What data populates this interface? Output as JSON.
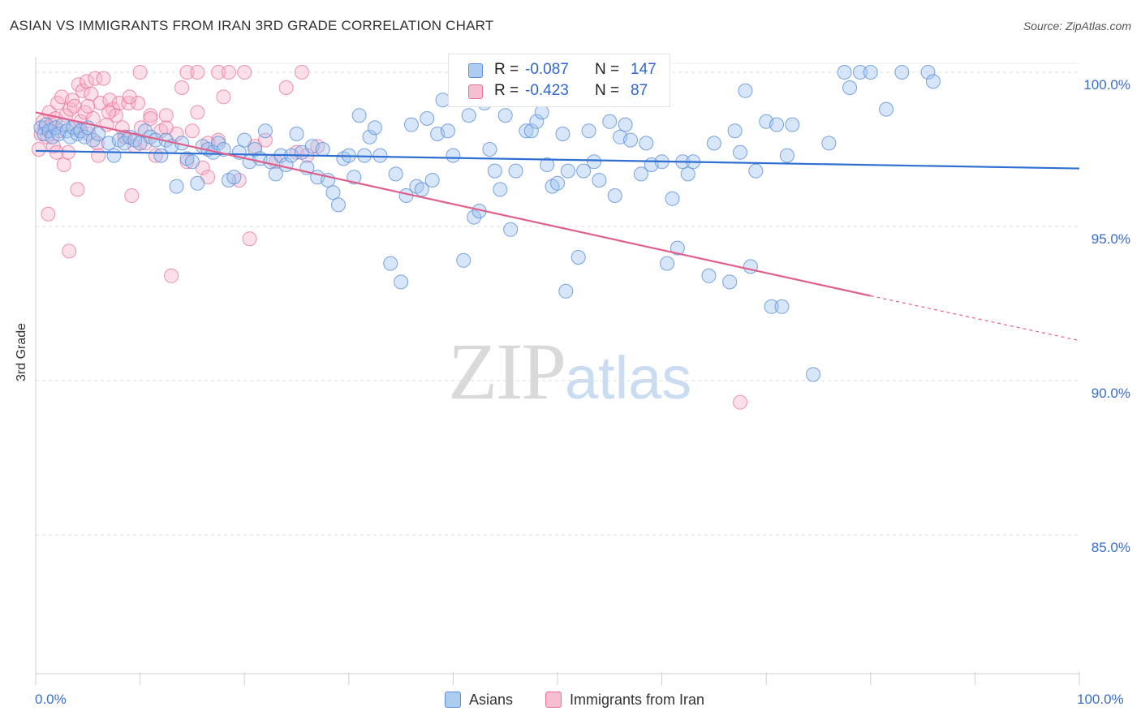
{
  "title": "ASIAN VS IMMIGRANTS FROM IRAN 3RD GRADE CORRELATION CHART",
  "source": "Source: ZipAtlas.com",
  "watermark": {
    "zip": "ZIP",
    "atlas": "atlas"
  },
  "legend": {
    "r_label": "R =",
    "n_label": "N =",
    "rows": [
      {
        "r": "-0.087",
        "n": "147",
        "fill": "#aecbf0",
        "stroke": "#5b8fd9"
      },
      {
        "r": "-0.423",
        "n": "87",
        "fill": "#f6bfd1",
        "stroke": "#e8709a"
      }
    ]
  },
  "bottom_legend": [
    "Asians",
    "Immigrants from Iran"
  ],
  "chart_data": {
    "type": "scatter",
    "title": "ASIAN VS IMMIGRANTS FROM IRAN 3RD GRADE CORRELATION CHART",
    "xlabel": "",
    "ylabel": "3rd Grade",
    "xlim": [
      0,
      100
    ],
    "ylim": [
      80.5,
      100.5
    ],
    "x_tick_labels": [
      "0.0%",
      "100.0%"
    ],
    "y_ticks": [
      {
        "value": 100,
        "label": "100.0%"
      },
      {
        "value": 95,
        "label": "95.0%"
      },
      {
        "value": 90,
        "label": "90.0%"
      },
      {
        "value": 85,
        "label": "85.0%"
      }
    ],
    "grid": "horizontal dashed",
    "legend_position": "top-center",
    "colors": {
      "asians": "#5b8fd9",
      "iran": "#e8709a",
      "asians_line": "#2f6fd1",
      "iran_line": "#e0608a"
    },
    "series": [
      {
        "name": "Asians",
        "r": -0.087,
        "n": 147,
        "trend": {
          "x0": 0,
          "y0": 97.45,
          "x1": 100,
          "y1": 96.88
        },
        "points": [
          [
            0.5,
            98.2
          ],
          [
            0.8,
            98.0
          ],
          [
            1.0,
            98.3
          ],
          [
            1.3,
            98.1
          ],
          [
            1.6,
            97.9
          ],
          [
            1.9,
            98.2
          ],
          [
            2.2,
            98.0
          ],
          [
            2.6,
            98.3
          ],
          [
            3.0,
            98.1
          ],
          [
            3.3,
            97.9
          ],
          [
            3.6,
            98.2
          ],
          [
            4.0,
            98.0
          ],
          [
            4.3,
            98.1
          ],
          [
            4.7,
            97.9
          ],
          [
            5.0,
            98.2
          ],
          [
            5.5,
            97.8
          ],
          [
            6.0,
            98.0
          ],
          [
            7.0,
            97.7
          ],
          [
            7.5,
            97.3
          ],
          [
            8.0,
            97.8
          ],
          [
            8.5,
            97.7
          ],
          [
            9.0,
            97.9
          ],
          [
            9.5,
            97.8
          ],
          [
            10.0,
            97.7
          ],
          [
            10.5,
            98.1
          ],
          [
            11.0,
            97.9
          ],
          [
            11.5,
            97.8
          ],
          [
            12.0,
            97.3
          ],
          [
            12.5,
            97.8
          ],
          [
            13.0,
            97.6
          ],
          [
            13.5,
            96.3
          ],
          [
            14.0,
            97.7
          ],
          [
            14.5,
            97.2
          ],
          [
            15.0,
            97.1
          ],
          [
            15.5,
            96.4
          ],
          [
            16.0,
            97.6
          ],
          [
            16.5,
            97.5
          ],
          [
            17.0,
            97.4
          ],
          [
            17.5,
            97.7
          ],
          [
            18.0,
            97.5
          ],
          [
            18.5,
            96.5
          ],
          [
            19.0,
            96.6
          ],
          [
            19.5,
            97.4
          ],
          [
            20.0,
            97.8
          ],
          [
            20.5,
            97.1
          ],
          [
            21.0,
            97.5
          ],
          [
            21.5,
            97.2
          ],
          [
            22.0,
            98.1
          ],
          [
            22.5,
            97.1
          ],
          [
            23.0,
            96.7
          ],
          [
            23.5,
            97.3
          ],
          [
            24.0,
            97.0
          ],
          [
            24.5,
            97.3
          ],
          [
            25.0,
            98.0
          ],
          [
            25.5,
            97.4
          ],
          [
            26.0,
            96.9
          ],
          [
            26.5,
            97.6
          ],
          [
            27.0,
            96.6
          ],
          [
            27.5,
            97.5
          ],
          [
            28.0,
            96.5
          ],
          [
            28.5,
            96.1
          ],
          [
            29.0,
            95.7
          ],
          [
            29.5,
            97.2
          ],
          [
            30.0,
            97.3
          ],
          [
            30.5,
            96.6
          ],
          [
            31.0,
            98.6
          ],
          [
            31.5,
            97.3
          ],
          [
            32.0,
            97.9
          ],
          [
            32.5,
            98.2
          ],
          [
            33.0,
            97.3
          ],
          [
            34.0,
            93.8
          ],
          [
            34.5,
            96.7
          ],
          [
            35.0,
            93.2
          ],
          [
            35.5,
            96.0
          ],
          [
            36.0,
            98.3
          ],
          [
            36.5,
            96.3
          ],
          [
            37.0,
            96.2
          ],
          [
            37.5,
            98.5
          ],
          [
            38.0,
            96.5
          ],
          [
            38.5,
            98.0
          ],
          [
            39.0,
            99.1
          ],
          [
            39.5,
            98.1
          ],
          [
            40.0,
            97.3
          ],
          [
            41.0,
            93.9
          ],
          [
            41.5,
            98.6
          ],
          [
            42.0,
            95.3
          ],
          [
            42.5,
            95.5
          ],
          [
            43.0,
            99.0
          ],
          [
            43.5,
            97.5
          ],
          [
            44.0,
            96.8
          ],
          [
            44.5,
            96.2
          ],
          [
            45.0,
            98.6
          ],
          [
            45.5,
            94.9
          ],
          [
            46.0,
            96.8
          ],
          [
            47.0,
            98.1
          ],
          [
            47.5,
            98.1
          ],
          [
            48.0,
            98.4
          ],
          [
            48.5,
            98.7
          ],
          [
            49.0,
            97.0
          ],
          [
            49.5,
            96.3
          ],
          [
            50.0,
            96.4
          ],
          [
            50.5,
            98.0
          ],
          [
            51.0,
            96.8
          ],
          [
            52.0,
            94.0
          ],
          [
            52.5,
            96.8
          ],
          [
            53.0,
            98.1
          ],
          [
            53.5,
            97.1
          ],
          [
            54.0,
            96.5
          ],
          [
            55.0,
            98.4
          ],
          [
            55.5,
            96.0
          ],
          [
            56.0,
            97.9
          ],
          [
            56.5,
            98.3
          ],
          [
            57.0,
            97.8
          ],
          [
            57.5,
            99.2
          ],
          [
            58.0,
            96.7
          ],
          [
            58.5,
            97.7
          ],
          [
            59.0,
            97.0
          ],
          [
            60.0,
            97.1
          ],
          [
            60.5,
            93.8
          ],
          [
            61.0,
            95.9
          ],
          [
            61.5,
            94.3
          ],
          [
            62.0,
            97.1
          ],
          [
            62.5,
            96.7
          ],
          [
            63.0,
            97.1
          ],
          [
            64.5,
            93.4
          ],
          [
            65.0,
            97.7
          ],
          [
            66.5,
            93.2
          ],
          [
            67.0,
            98.1
          ],
          [
            67.5,
            97.4
          ],
          [
            68.0,
            99.4
          ],
          [
            68.5,
            93.7
          ],
          [
            69.0,
            96.8
          ],
          [
            70.0,
            98.4
          ],
          [
            71.0,
            98.3
          ],
          [
            72.0,
            97.3
          ],
          [
            72.5,
            98.3
          ],
          [
            74.5,
            90.2
          ],
          [
            76.0,
            97.7
          ],
          [
            77.5,
            100.0
          ],
          [
            78.0,
            99.5
          ],
          [
            79.0,
            100.0
          ],
          [
            80.0,
            100.0
          ],
          [
            81.5,
            98.8
          ],
          [
            83.0,
            100.0
          ],
          [
            85.5,
            100.0
          ],
          [
            86.0,
            99.7
          ],
          [
            70.5,
            92.4
          ],
          [
            71.5,
            92.4
          ],
          [
            50.8,
            92.9
          ]
        ]
      },
      {
        "name": "Immigrants from Iran",
        "r": -0.423,
        "n": 87,
        "trend": {
          "x0": 0,
          "y0": 98.7,
          "x1": 80,
          "y1": 92.75
        },
        "trend_dashed": {
          "x0": 80,
          "y0": 92.75,
          "x1": 100,
          "y1": 91.3
        },
        "points": [
          [
            0.3,
            97.5
          ],
          [
            0.5,
            98.0
          ],
          [
            0.7,
            98.4
          ],
          [
            0.9,
            98.2
          ],
          [
            1.1,
            97.9
          ],
          [
            1.3,
            98.7
          ],
          [
            1.5,
            98.3
          ],
          [
            1.7,
            97.6
          ],
          [
            1.9,
            98.5
          ],
          [
            2.1,
            99.0
          ],
          [
            2.3,
            98.1
          ],
          [
            2.5,
            99.2
          ],
          [
            2.7,
            97.0
          ],
          [
            2.9,
            98.6
          ],
          [
            3.1,
            97.4
          ],
          [
            3.3,
            98.8
          ],
          [
            3.5,
            99.1
          ],
          [
            3.7,
            98.9
          ],
          [
            3.9,
            98.2
          ],
          [
            4.1,
            99.6
          ],
          [
            4.3,
            98.4
          ],
          [
            4.5,
            99.4
          ],
          [
            4.7,
            98.7
          ],
          [
            4.9,
            99.7
          ],
          [
            5.1,
            98.0
          ],
          [
            5.3,
            99.3
          ],
          [
            5.5,
            98.5
          ],
          [
            5.7,
            99.8
          ],
          [
            5.9,
            97.7
          ],
          [
            6.2,
            99.0
          ],
          [
            6.5,
            99.8
          ],
          [
            6.8,
            98.3
          ],
          [
            7.1,
            99.1
          ],
          [
            7.4,
            98.8
          ],
          [
            7.7,
            98.6
          ],
          [
            8.0,
            99.0
          ],
          [
            8.3,
            98.2
          ],
          [
            8.6,
            97.9
          ],
          [
            8.9,
            99.0
          ],
          [
            9.2,
            96.0
          ],
          [
            9.5,
            97.6
          ],
          [
            9.8,
            99.0
          ],
          [
            10.1,
            98.2
          ],
          [
            10.5,
            97.7
          ],
          [
            11.0,
            98.6
          ],
          [
            11.5,
            97.3
          ],
          [
            12.0,
            98.1
          ],
          [
            12.5,
            98.6
          ],
          [
            13.0,
            93.4
          ],
          [
            13.5,
            98.0
          ],
          [
            14.0,
            99.5
          ],
          [
            14.5,
            97.1
          ],
          [
            15.0,
            98.1
          ],
          [
            15.5,
            98.7
          ],
          [
            16.0,
            96.9
          ],
          [
            16.5,
            96.6
          ],
          [
            17.5,
            97.8
          ],
          [
            18.0,
            99.2
          ],
          [
            19.5,
            96.5
          ],
          [
            20.0,
            100.0
          ],
          [
            21.0,
            97.6
          ],
          [
            22.0,
            97.8
          ],
          [
            23.0,
            97.1
          ],
          [
            24.0,
            99.5
          ],
          [
            25.0,
            97.4
          ],
          [
            26.0,
            97.3
          ],
          [
            27.0,
            97.6
          ],
          [
            10.0,
            100.0
          ],
          [
            14.5,
            100.0
          ],
          [
            15.5,
            100.0
          ],
          [
            17.5,
            100.0
          ],
          [
            18.5,
            100.0
          ],
          [
            20.5,
            94.6
          ],
          [
            25.5,
            100.0
          ],
          [
            1.2,
            95.4
          ],
          [
            3.2,
            94.2
          ],
          [
            8.5,
            97.9
          ],
          [
            6.0,
            97.3
          ],
          [
            4.0,
            96.2
          ],
          [
            2.0,
            97.4
          ],
          [
            11.0,
            98.5
          ],
          [
            16.5,
            97.7
          ],
          [
            12.5,
            98.2
          ],
          [
            9.0,
            99.2
          ],
          [
            7.0,
            98.7
          ],
          [
            5.0,
            98.9
          ],
          [
            67.5,
            89.3
          ]
        ]
      }
    ]
  }
}
